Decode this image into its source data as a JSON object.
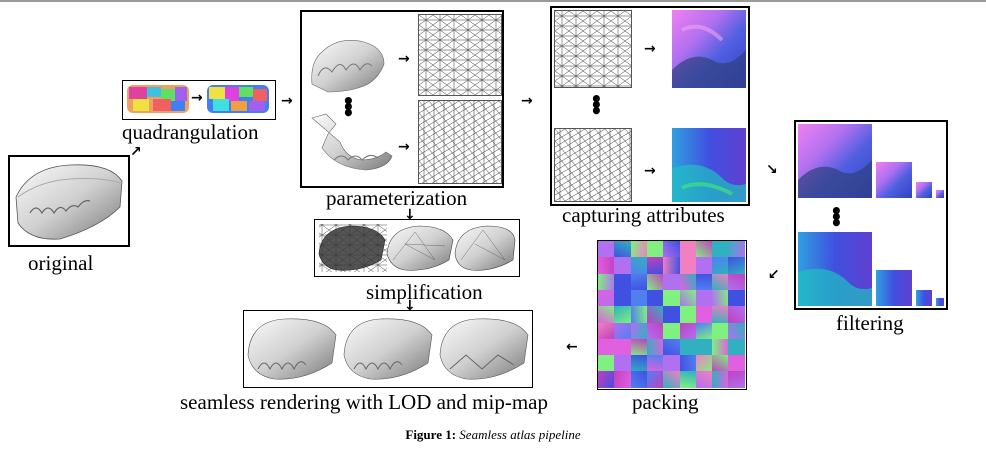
{
  "labels": {
    "original": "original",
    "quadrangulation": "quadrangulation",
    "parameterization": "parameterization",
    "capturing": "capturing attributes",
    "simplification": "simplification",
    "filtering": "filtering",
    "packing": "packing",
    "seamless": "seamless rendering with LOD and mip-map"
  },
  "caption": {
    "prefix": "Figure 1:",
    "text": "Seamless atlas pipeline"
  },
  "colors": {
    "frame": "#000000",
    "mesh_line": "#333333",
    "tooth_light": "#e6e6e6",
    "tooth_shadow": "#8a8a8a",
    "texture_magenta": "#e060e0",
    "texture_blue": "#4050e0",
    "texture_teal": "#30b0c0",
    "texture_green": "#80f080"
  },
  "icons": {
    "arrow_right": "arrow-right-icon",
    "arrow_left": "arrow-left-icon",
    "arrow_down": "arrow-down-icon",
    "arrow_diag_up": "arrow-diagonal-up-icon",
    "arrow_diag_down": "arrow-diagonal-down-icon",
    "vertical_ellipsis": "vertical-ellipsis-icon"
  }
}
